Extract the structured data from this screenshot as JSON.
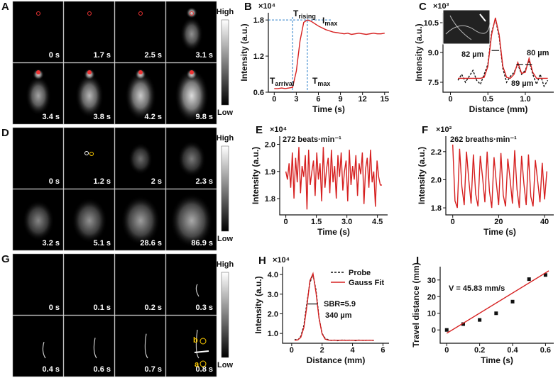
{
  "image_panels": [
    {
      "letter": "A",
      "times": [
        "0 s",
        "1.7 s",
        "2.5 s",
        "3.1 s",
        "3.4 s",
        "3.8 s",
        "4.2 s",
        "9.8 s"
      ],
      "high": "High",
      "low": "Low"
    },
    {
      "letter": "D",
      "times": [
        "0 s",
        "1.2 s",
        "2 s",
        "2.3 s",
        "3.2 s",
        "5.1 s",
        "28.6 s",
        "86.9 s"
      ],
      "high": "High",
      "low": "Low"
    },
    {
      "letter": "G",
      "times": [
        "0 s",
        "0.1 s",
        "0.2 s",
        "0.3 s",
        "0.4 s",
        "0.6 s",
        "0.7 s",
        "0.8 s"
      ],
      "high": "High",
      "low": "Low",
      "markers": [
        "a",
        "b"
      ]
    }
  ],
  "chart_data": [
    {
      "type": "line",
      "letter": "B",
      "multiplier": "×10⁴",
      "xlabel": "Time (s)",
      "ylabel": "Intensity (a.u.)",
      "xlim": [
        -0.8,
        15.6
      ],
      "ylim": [
        0.6,
        1.92
      ],
      "xticks": [
        0,
        3,
        6,
        9,
        12,
        15
      ],
      "yticks": [
        0.6,
        1.2,
        1.8
      ],
      "series": [
        {
          "color": "#d62020",
          "kind": "line",
          "x": [
            0,
            0.5,
            1,
            1.5,
            2,
            2.5,
            3,
            3.5,
            4,
            4.5,
            5,
            5.5,
            6,
            6.5,
            7,
            7.5,
            8,
            8.5,
            9,
            9.5,
            10,
            10.5,
            11,
            11.5,
            12,
            12.5,
            13,
            13.5,
            14,
            14.5,
            15
          ],
          "values": [
            0.66,
            0.66,
            0.67,
            0.66,
            0.67,
            0.68,
            0.95,
            1.45,
            1.76,
            1.8,
            1.78,
            1.74,
            1.7,
            1.67,
            1.64,
            1.62,
            1.6,
            1.59,
            1.58,
            1.57,
            1.58,
            1.56,
            1.57,
            1.58,
            1.57,
            1.56,
            1.57,
            1.58,
            1.57,
            1.57,
            1.58
          ]
        }
      ],
      "guides": {
        "x": [
          2.5,
          4.5
        ],
        "y": [
          1.8
        ]
      },
      "annotations": [
        {
          "text": "T",
          "sub": "arrival"
        },
        {
          "text": "T",
          "sub": "rising"
        },
        {
          "text": "I",
          "sub": "max"
        },
        {
          "text": "T",
          "sub": "max"
        }
      ]
    },
    {
      "type": "line",
      "letter": "C",
      "multiplier": "×10³",
      "xlabel": "Distance (mm)",
      "ylabel": "Intensity (a.u.)",
      "xlim": [
        -0.1,
        1.38
      ],
      "ylim": [
        7.0,
        11.0
      ],
      "xticks": [
        0,
        0.5,
        {
          "value": 1,
          "label": "1.0"
        }
      ],
      "yticks": [
        7.5,
        {
          "value": 9,
          "label": "9.0"
        },
        10.5
      ],
      "series": [
        {
          "color": "#111111",
          "kind": "dashed",
          "x": [
            0.1,
            0.15,
            0.2,
            0.25,
            0.3,
            0.35,
            0.4,
            0.45,
            0.5,
            0.55,
            0.6,
            0.65,
            0.7,
            0.75,
            0.8,
            0.85,
            0.9,
            0.95,
            1,
            1.05,
            1.1,
            1.15,
            1.2,
            1.25,
            1.3
          ],
          "values": [
            7.6,
            7.9,
            7.5,
            7.8,
            8.1,
            7.6,
            7.4,
            7.9,
            8.4,
            10.0,
            10.7,
            9.8,
            8.2,
            7.5,
            7.8,
            8.0,
            8.4,
            7.9,
            8.1,
            8.6,
            7.9,
            7.4,
            7.9,
            7.3,
            7.6
          ]
        },
        {
          "color": "#d62020",
          "kind": "line",
          "x": [
            0.1,
            0.15,
            0.2,
            0.25,
            0.3,
            0.35,
            0.4,
            0.45,
            0.5,
            0.55,
            0.6,
            0.65,
            0.7,
            0.75,
            0.8,
            0.85,
            0.9,
            0.95,
            1,
            1.05,
            1.1,
            1.15,
            1.2,
            1.25,
            1.3
          ],
          "values": [
            7.7,
            7.7,
            7.7,
            7.7,
            7.7,
            7.7,
            7.7,
            7.75,
            8.3,
            9.9,
            10.75,
            9.9,
            8.3,
            7.75,
            7.7,
            7.9,
            8.5,
            7.95,
            8.0,
            8.7,
            8.0,
            7.7,
            7.7,
            7.7,
            7.7
          ]
        }
      ],
      "annotations": [
        {
          "text": "82 µm"
        },
        {
          "text": "80 µm"
        },
        {
          "text": "89 µm"
        }
      ]
    },
    {
      "type": "line",
      "letter": "E",
      "multiplier": "×10⁴",
      "xlabel": "Time (s)",
      "ylabel": "Intensity (a.u.)",
      "xlim": [
        -0.3,
        5.0
      ],
      "ylim": [
        1.74,
        2.03
      ],
      "xticks": [
        0,
        1.5,
        {
          "value": 3,
          "label": "3.0"
        },
        4.5
      ],
      "yticks": [
        1.8,
        1.9,
        {
          "value": 2,
          "label": "2.0"
        }
      ],
      "series": [
        {
          "color": "#d62020",
          "kind": "line",
          "x": [
            0,
            0.08,
            0.16,
            0.24,
            0.32,
            0.4,
            0.48,
            0.56,
            0.64,
            0.72,
            0.8,
            0.88,
            0.96,
            1.04,
            1.12,
            1.2,
            1.28,
            1.36,
            1.44,
            1.52,
            1.6,
            1.68,
            1.76,
            1.84,
            1.92,
            2,
            2.08,
            2.16,
            2.24,
            2.32,
            2.4,
            2.48,
            2.56,
            2.64,
            2.72,
            2.8,
            2.88,
            2.96,
            3.04,
            3.12,
            3.2,
            3.28,
            3.36,
            3.44,
            3.52,
            3.6,
            3.68,
            3.76,
            3.84,
            3.92,
            4,
            4.08,
            4.16,
            4.24,
            4.32,
            4.4,
            4.48,
            4.56,
            4.64,
            4.72
          ],
          "values": [
            1.9,
            1.87,
            1.93,
            1.84,
            1.97,
            1.8,
            1.95,
            1.86,
            1.99,
            1.82,
            1.92,
            1.88,
            1.96,
            1.76,
            1.98,
            1.85,
            1.9,
            1.94,
            1.81,
            1.97,
            1.87,
            1.93,
            1.79,
            1.99,
            1.84,
            1.91,
            1.95,
            1.82,
            1.98,
            1.86,
            1.92,
            1.8,
            1.96,
            1.88,
            1.97,
            1.83,
            1.9,
            1.94,
            1.79,
            1.98,
            1.85,
            1.92,
            1.87,
            1.96,
            1.81,
            1.93,
            1.89,
            1.97,
            1.78,
            1.91,
            1.95,
            1.84,
            1.98,
            1.86,
            1.9,
            1.77,
            1.94,
            1.88,
            1.85,
            1.85
          ]
        }
      ],
      "annotations": [
        {
          "text": "272 beats·min⁻¹"
        }
      ]
    },
    {
      "type": "line",
      "letter": "F",
      "multiplier": "×10²",
      "xlabel": "Time (s)",
      "ylabel": "Intensity (a.u.)",
      "xlim": [
        -3,
        44
      ],
      "ylim": [
        1.75,
        2.31
      ],
      "xticks": [
        0,
        20,
        40
      ],
      "yticks": [
        1.8,
        {
          "value": 2,
          "label": "2.0"
        },
        2.2
      ],
      "series": [
        {
          "color": "#d62020",
          "kind": "line",
          "x": [
            0,
            1,
            2,
            3,
            4,
            5,
            6,
            7,
            8,
            9,
            10,
            11,
            12,
            13,
            14,
            15,
            16,
            17,
            18,
            19,
            20,
            21,
            22,
            23,
            24,
            25,
            26,
            27,
            28,
            29,
            30,
            31,
            32,
            33,
            34,
            35,
            36,
            37,
            38,
            39,
            40,
            41
          ],
          "values": [
            2.25,
            1.85,
            1.8,
            2.22,
            1.95,
            1.82,
            2.2,
            2.0,
            1.83,
            2.18,
            1.9,
            1.81,
            2.17,
            2.02,
            1.84,
            2.2,
            1.92,
            1.8,
            2.16,
            1.98,
            1.82,
            2.19,
            1.89,
            1.81,
            2.15,
            2.0,
            1.83,
            2.21,
            1.93,
            1.8,
            2.17,
            1.97,
            1.82,
            2.18,
            1.88,
            1.81,
            2.14,
            1.99,
            1.84,
            2.12,
            1.86,
            2.06
          ]
        }
      ],
      "annotations": [
        {
          "text": "262 breaths·min⁻¹"
        }
      ]
    },
    {
      "type": "line",
      "letter": "H",
      "multiplier": "×10⁴",
      "xlabel": "Distance (mm)",
      "ylabel": "Intensity (a.u.)",
      "xlim": [
        -0.6,
        6.4
      ],
      "ylim": [
        0.5,
        4.4
      ],
      "xticks": [
        0,
        2,
        4,
        6
      ],
      "yticks": [
        {
          "value": 1,
          "label": "1.0"
        },
        {
          "value": 2,
          "label": "2.0"
        },
        {
          "value": 3,
          "label": "3.0"
        },
        {
          "value": 4,
          "label": "4.0"
        }
      ],
      "legend": "top-right",
      "series": [
        {
          "name": "Probe",
          "color": "#111111",
          "kind": "dashed",
          "x": [
            0.2,
            0.4,
            0.6,
            0.8,
            1,
            1.2,
            1.4,
            1.6,
            1.8,
            2,
            2.2,
            2.4,
            2.6,
            2.8,
            3,
            3.2,
            3.4,
            3.6,
            3.8,
            4,
            4.2,
            4.4,
            4.6,
            4.8,
            5,
            5.2,
            5.4
          ],
          "values": [
            0.7,
            0.66,
            0.85,
            1.4,
            2.55,
            3.6,
            4.0,
            3.2,
            1.8,
            1.0,
            0.75,
            0.68,
            0.64,
            0.66,
            0.63,
            0.65,
            0.67,
            0.64,
            0.66,
            0.65,
            0.63,
            0.66,
            0.65,
            0.64,
            0.66,
            0.65,
            0.64
          ]
        },
        {
          "name": "Gauss Fit",
          "color": "#d62020",
          "kind": "line",
          "x": [
            0.2,
            0.4,
            0.6,
            0.8,
            1,
            1.2,
            1.4,
            1.6,
            1.8,
            2,
            2.2,
            2.4,
            2.6,
            2.8,
            3,
            3.2,
            3.4,
            3.6,
            3.8,
            4,
            4.2,
            4.4,
            4.6,
            4.8,
            5,
            5.2,
            5.4
          ],
          "values": [
            0.65,
            0.67,
            0.8,
            1.29,
            2.4,
            3.69,
            4.05,
            3.09,
            1.77,
            0.98,
            0.71,
            0.66,
            0.65,
            0.65,
            0.65,
            0.65,
            0.65,
            0.65,
            0.65,
            0.65,
            0.65,
            0.65,
            0.65,
            0.65,
            0.65,
            0.65,
            0.65
          ]
        }
      ],
      "annotations": [
        {
          "text": "SBR=5.9"
        },
        {
          "text": "340 µm"
        }
      ]
    },
    {
      "type": "scatter",
      "letter": "I",
      "xlabel": "Time (s)",
      "ylabel": "Travel distance (mm)",
      "xlim": [
        -0.04,
        0.65
      ],
      "ylim": [
        -8,
        38
      ],
      "xticks": [
        0,
        0.2,
        0.4,
        0.6
      ],
      "yticks": [
        0,
        10,
        20,
        30
      ],
      "series": [
        {
          "color": "#111111",
          "kind": "points",
          "x": [
            0,
            0.1,
            0.2,
            0.3,
            0.4,
            0.5,
            0.6
          ],
          "values": [
            0,
            3.5,
            6,
            10,
            17,
            30.5,
            33
          ]
        },
        {
          "color": "#d62020",
          "kind": "line",
          "x": [
            0,
            0.62
          ],
          "values": [
            -2,
            35.5
          ]
        }
      ],
      "annotations": [
        {
          "text": "V = 45.83 mm/s"
        }
      ]
    }
  ]
}
